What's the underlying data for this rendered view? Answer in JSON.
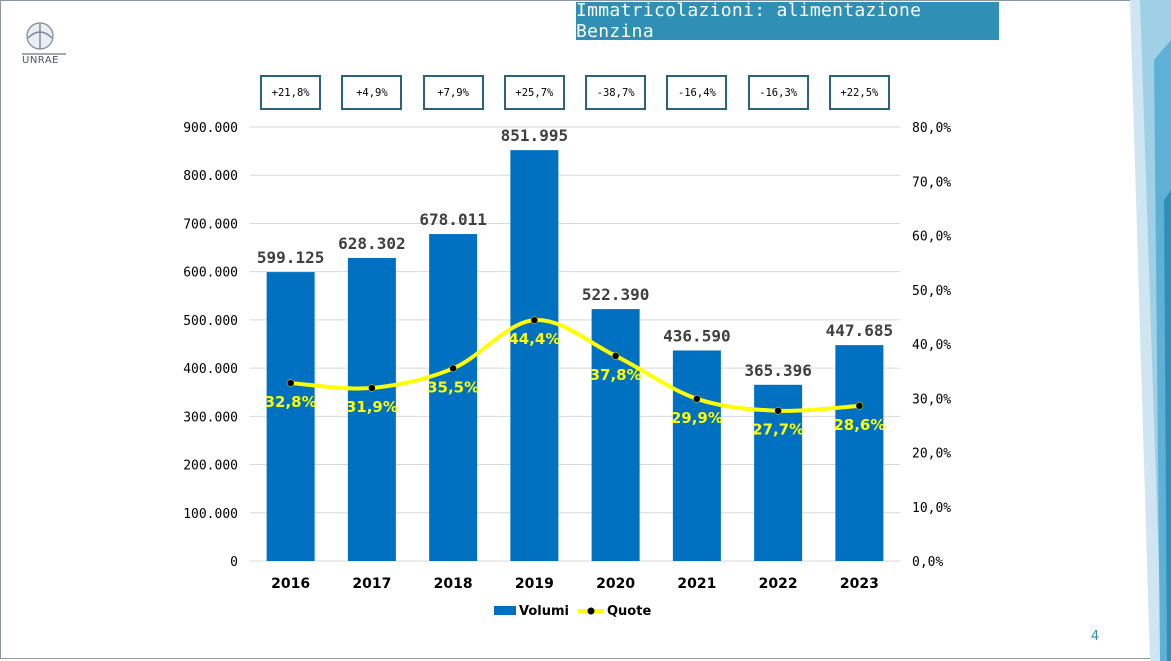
{
  "slide": {
    "title": "Immatricolazioni: alimentazione Benzina",
    "logo_text": "UNRAE",
    "page_number": "4"
  },
  "growth_boxes": [
    "+21,8%",
    "+4,9%",
    "+7,9%",
    "+25,7%",
    "-38,7%",
    "-16,4%",
    "-16,3%",
    "+22,5%"
  ],
  "chart_data": {
    "type": "bar",
    "categories": [
      "2016",
      "2017",
      "2018",
      "2019",
      "2020",
      "2021",
      "2022",
      "2023"
    ],
    "series": [
      {
        "name": "Volumi",
        "type": "bar",
        "axis": "left",
        "color": "#0070c0",
        "values": [
          599125,
          628302,
          678011,
          851995,
          522390,
          436590,
          365396,
          447685
        ],
        "labels": [
          "599.125",
          "628.302",
          "678.011",
          "851.995",
          "522.390",
          "436.590",
          "365.396",
          "447.685"
        ]
      },
      {
        "name": "Quote",
        "type": "line",
        "axis": "right",
        "color": "#ffff00",
        "values": [
          32.8,
          31.9,
          35.5,
          44.4,
          37.8,
          29.9,
          27.7,
          28.6
        ],
        "labels": [
          "32,8%",
          "31,9%",
          "35,5%",
          "44,4%",
          "37,8%",
          "29,9%",
          "27,7%",
          "28,6%"
        ]
      }
    ],
    "y_left": {
      "min": 0,
      "max": 900000,
      "ticks": [
        "0",
        "100.000",
        "200.000",
        "300.000",
        "400.000",
        "500.000",
        "600.000",
        "700.000",
        "800.000",
        "900.000"
      ]
    },
    "y_right": {
      "min": 0,
      "max": 80,
      "ticks": [
        "0,0%",
        "10,0%",
        "20,0%",
        "30,0%",
        "40,0%",
        "50,0%",
        "60,0%",
        "70,0%",
        "80,0%"
      ]
    },
    "grid": true,
    "legend_position": "bottom"
  }
}
